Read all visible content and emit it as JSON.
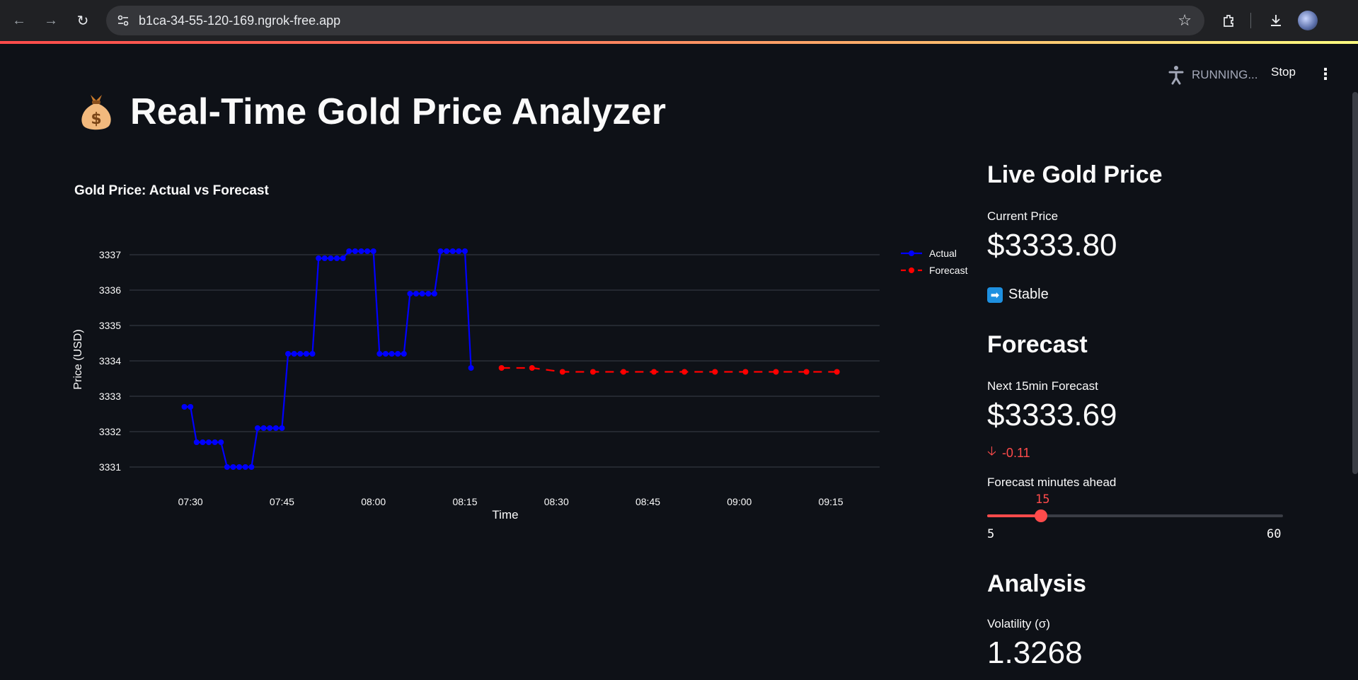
{
  "browser": {
    "url": "b1ca-34-55-120-169.ngrok-free.app"
  },
  "app": {
    "status_text": "RUNNING...",
    "stop_label": "Stop",
    "title": "Real-Time Gold Price Analyzer",
    "title_icon": "money-bag-icon"
  },
  "chart_data": {
    "type": "line",
    "title": "Gold Price: Actual vs Forecast",
    "xlabel": "Time",
    "ylabel": "Price (USD)",
    "x_ticks": [
      "07:30",
      "07:45",
      "08:00",
      "08:15",
      "08:30",
      "08:45",
      "09:00",
      "09:15"
    ],
    "y_ticks": [
      3331,
      3332,
      3333,
      3334,
      3335,
      3336,
      3337
    ],
    "ylim": [
      3330.8,
      3337.2
    ],
    "grid": true,
    "legend": "top-right",
    "series": [
      {
        "name": "Actual",
        "color": "#0000ff",
        "line": "solid",
        "x": [
          "07:29",
          "07:30",
          "07:31",
          "07:32",
          "07:33",
          "07:34",
          "07:35",
          "07:36",
          "07:37",
          "07:38",
          "07:39",
          "07:40",
          "07:41",
          "07:42",
          "07:43",
          "07:44",
          "07:45",
          "07:46",
          "07:47",
          "07:48",
          "07:49",
          "07:50",
          "07:51",
          "07:52",
          "07:53",
          "07:54",
          "07:55",
          "07:56",
          "07:57",
          "07:58",
          "07:59",
          "08:00",
          "08:01",
          "08:02",
          "08:03",
          "08:04",
          "08:05",
          "08:06",
          "08:07",
          "08:08",
          "08:09",
          "08:10",
          "08:11",
          "08:12",
          "08:13",
          "08:14",
          "08:15",
          "08:16"
        ],
        "y": [
          3332.7,
          3332.7,
          3331.7,
          3331.7,
          3331.7,
          3331.7,
          3331.7,
          3331.0,
          3331.0,
          3331.0,
          3331.0,
          3331.0,
          3332.1,
          3332.1,
          3332.1,
          3332.1,
          3332.1,
          3334.2,
          3334.2,
          3334.2,
          3334.2,
          3334.2,
          3336.9,
          3336.9,
          3336.9,
          3336.9,
          3336.9,
          3337.1,
          3337.1,
          3337.1,
          3337.1,
          3337.1,
          3334.2,
          3334.2,
          3334.2,
          3334.2,
          3334.2,
          3335.9,
          3335.9,
          3335.9,
          3335.9,
          3335.9,
          3337.1,
          3337.1,
          3337.1,
          3337.1,
          3337.1,
          3333.8
        ]
      },
      {
        "name": "Forecast",
        "color": "#ff0000",
        "line": "dashed",
        "x": [
          "08:21",
          "08:26",
          "08:31",
          "08:36",
          "08:41",
          "08:46",
          "08:51",
          "08:56",
          "09:01",
          "09:06",
          "09:11",
          "09:16"
        ],
        "y": [
          3333.8,
          3333.8,
          3333.69,
          3333.69,
          3333.69,
          3333.69,
          3333.69,
          3333.69,
          3333.69,
          3333.69,
          3333.69,
          3333.69
        ]
      }
    ]
  },
  "live": {
    "heading": "Live Gold Price",
    "current_label": "Current Price",
    "current_value": "$3333.80",
    "trend_icon": "right-arrow-icon",
    "trend_text": "Stable"
  },
  "forecast": {
    "heading": "Forecast",
    "next_label": "Next 15min Forecast",
    "next_value": "$3333.69",
    "delta": "-0.11",
    "slider_label": "Forecast minutes ahead",
    "slider_value": 15,
    "slider_min": 5,
    "slider_max": 60
  },
  "analysis": {
    "heading": "Analysis",
    "volatility_label": "Volatility (σ)",
    "volatility_value": "1.3268"
  }
}
